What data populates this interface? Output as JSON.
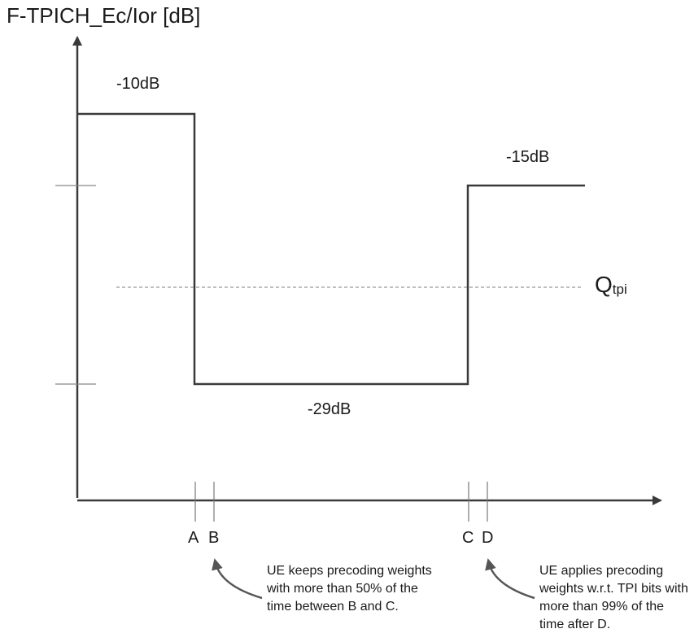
{
  "diagram": {
    "y_axis_label": "F-TPICH_Ec/Ior [dB]",
    "levels": {
      "high": "-10dB",
      "low": "-29dB",
      "mid": "-15dB"
    },
    "threshold": {
      "symbol": "Q",
      "subscript": "tpi"
    },
    "x_markers": [
      "A",
      "B",
      "C",
      "D"
    ],
    "annotations": {
      "left": "UE keeps precoding weights with more than 50% of the time between B and C.",
      "right": "UE applies precoding weights w.r.t. TPI bits with more than 99% of the time after D."
    },
    "colors": {
      "signal": "#3a3a3a",
      "axis": "#3a3a3a",
      "threshold_line": "#999999",
      "marker_lines": "#777777",
      "arrow": "#555555"
    }
  }
}
